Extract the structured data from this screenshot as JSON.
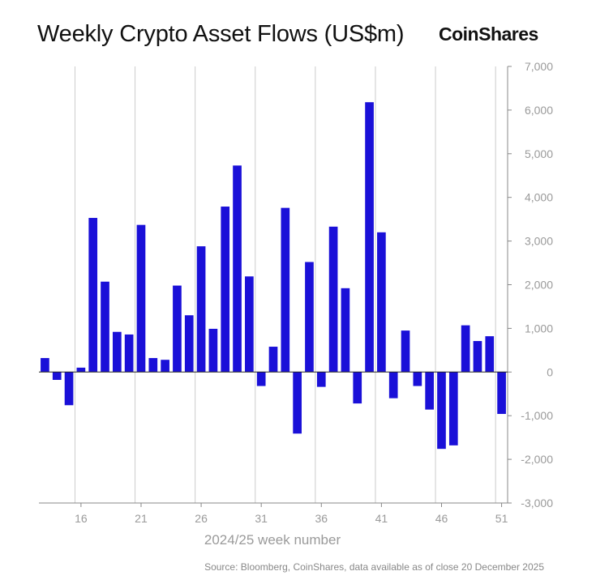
{
  "header": {
    "title": "Weekly Crypto Asset Flows (US$m)",
    "brand": "CoinShares"
  },
  "footer": {
    "source": "Source: Bloomberg, CoinShares, data available as of close 20 December 2025"
  },
  "colors": {
    "bar": "#1a10d8",
    "grid": "#cccccc",
    "axis": "#888888",
    "zero_line": "#222222"
  },
  "chart_data": {
    "type": "bar",
    "title": "Weekly Crypto Asset Flows (US$m)",
    "xlabel": "2024/25 week number",
    "ylabel": "",
    "ylim": [
      -3000,
      7000
    ],
    "yticks": [
      7000,
      6000,
      5000,
      4000,
      3000,
      2000,
      1000,
      0,
      -1000,
      -2000,
      -3000
    ],
    "ytick_labels": [
      "7,000",
      "6,000",
      "5,000",
      "4,000",
      "3,000",
      "2,000",
      "1,000",
      "0",
      "-1,000",
      "-2,000",
      "-3,000"
    ],
    "xticks": [
      16,
      21,
      26,
      31,
      36,
      41,
      46,
      51
    ],
    "xlim": [
      12.5,
      51.5
    ],
    "grid": "vertical",
    "y_axis_position": "right",
    "categories": [
      13,
      14,
      15,
      16,
      17,
      18,
      19,
      20,
      21,
      22,
      23,
      24,
      25,
      26,
      27,
      28,
      29,
      30,
      31,
      32,
      33,
      34,
      35,
      36,
      37,
      38,
      39,
      40,
      41,
      42,
      43,
      44,
      45,
      46,
      47,
      48,
      49,
      50,
      51
    ],
    "values": [
      320,
      -180,
      -760,
      100,
      3530,
      2070,
      920,
      860,
      3370,
      320,
      280,
      1980,
      1300,
      2880,
      990,
      3790,
      4730,
      2190,
      -320,
      580,
      3760,
      -1410,
      2520,
      -340,
      3330,
      1920,
      -720,
      6180,
      3200,
      -600,
      950,
      -320,
      -860,
      -1760,
      -1680,
      1070,
      710,
      820,
      -960
    ]
  }
}
